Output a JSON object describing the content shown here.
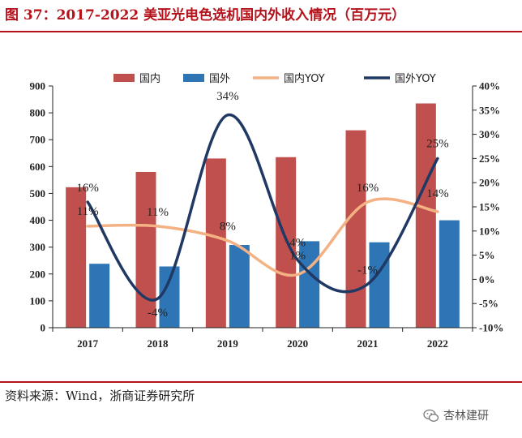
{
  "header": {
    "title": "图 37：2017-2022 美亚光电色选机国内外收入情况（百万元）"
  },
  "footer": {
    "source": "资料来源：Wind，浙商证券研究所",
    "watermark": "杏林建研"
  },
  "colors": {
    "brand": "#b5121b",
    "domestic": "#c0504d",
    "overseas": "#2e75b6",
    "domestic_yoy": "#f4b183",
    "overseas_yoy": "#203864"
  },
  "chart_data": {
    "type": "bar",
    "title": "2017-2022 美亚光电色选机国内外收入情况（百万元）",
    "categories": [
      "2017",
      "2018",
      "2019",
      "2020",
      "2021",
      "2022"
    ],
    "series": [
      {
        "name": "国内",
        "type": "bar",
        "axis": "left",
        "values": [
          523,
          580,
          630,
          635,
          735,
          835
        ]
      },
      {
        "name": "国外",
        "type": "bar",
        "axis": "left",
        "values": [
          238,
          228,
          308,
          322,
          318,
          400
        ]
      },
      {
        "name": "国内YOY",
        "type": "line",
        "axis": "right",
        "values": [
          11,
          11,
          8,
          1,
          16,
          14
        ],
        "labels": [
          "11%",
          "11%",
          "8%",
          "1%",
          "16%",
          "14%"
        ]
      },
      {
        "name": "国外YOY",
        "type": "line",
        "axis": "right",
        "values": [
          16,
          -4,
          34,
          4,
          -1,
          25
        ],
        "labels": [
          "16%",
          "-4%",
          "34%",
          "4%",
          "-1%",
          "25%"
        ]
      }
    ],
    "y_left": {
      "min": 0,
      "max": 900,
      "step": 100,
      "ticks": [
        "0",
        "100",
        "200",
        "300",
        "400",
        "500",
        "600",
        "700",
        "800",
        "900"
      ]
    },
    "y_right": {
      "min": -10,
      "max": 40,
      "step": 5,
      "ticks": [
        "-10%",
        "-5%",
        "0%",
        "5%",
        "10%",
        "15%",
        "20%",
        "25%",
        "30%",
        "35%",
        "40%"
      ]
    },
    "legend": {
      "position": "top",
      "items": [
        "国内",
        "国外",
        "国内YOY",
        "国外YOY"
      ]
    },
    "grid": false
  }
}
